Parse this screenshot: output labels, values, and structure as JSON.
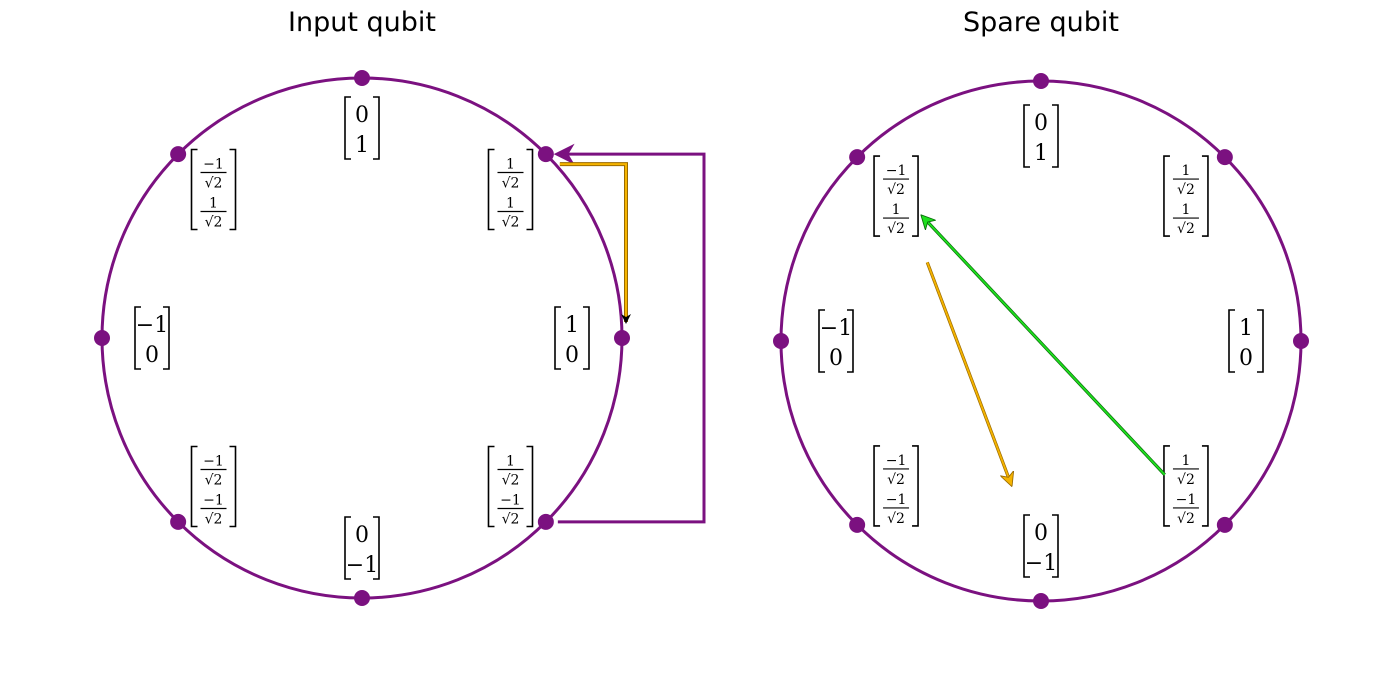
{
  "colors": {
    "circle": "#7b1180",
    "dot": "#7b1180",
    "loop": "#7b1180",
    "orange": "#f5b400",
    "orange_edge": "#9a6a00",
    "green": "#1ee01e",
    "green_edge": "#0a6a0a",
    "black": "#000000"
  },
  "panels": [
    {
      "id": "input",
      "title": "Input qubit",
      "states": [
        {
          "angle": 90,
          "label": [
            [
              "0"
            ],
            [
              "1"
            ]
          ]
        },
        {
          "angle": 45,
          "label": [
            [
              "1",
              "√2"
            ],
            [
              "1",
              "√2"
            ]
          ]
        },
        {
          "angle": 0,
          "label": [
            [
              "1"
            ],
            [
              "0"
            ]
          ]
        },
        {
          "angle": -45,
          "label": [
            [
              "1",
              "√2"
            ],
            [
              "−1",
              "√2"
            ]
          ]
        },
        {
          "angle": -90,
          "label": [
            [
              "0"
            ],
            [
              "−1"
            ]
          ]
        },
        {
          "angle": -135,
          "label": [
            [
              "−1",
              "√2"
            ],
            [
              "−1",
              "√2"
            ]
          ]
        },
        {
          "angle": 180,
          "label": [
            [
              "−1"
            ],
            [
              "0"
            ]
          ]
        },
        {
          "angle": 135,
          "label": [
            [
              "−1",
              "√2"
            ],
            [
              "1",
              "√2"
            ]
          ]
        }
      ]
    },
    {
      "id": "spare",
      "title": "Spare qubit",
      "states": [
        {
          "angle": 90,
          "label": [
            [
              "0"
            ],
            [
              "1"
            ]
          ]
        },
        {
          "angle": 45,
          "label": [
            [
              "1",
              "√2"
            ],
            [
              "1",
              "√2"
            ]
          ]
        },
        {
          "angle": 0,
          "label": [
            [
              "1"
            ],
            [
              "0"
            ]
          ]
        },
        {
          "angle": -45,
          "label": [
            [
              "1",
              "√2"
            ],
            [
              "−1",
              "√2"
            ]
          ]
        },
        {
          "angle": -90,
          "label": [
            [
              "0"
            ],
            [
              "−1"
            ]
          ]
        },
        {
          "angle": -135,
          "label": [
            [
              "−1",
              "√2"
            ],
            [
              "−1",
              "√2"
            ]
          ]
        },
        {
          "angle": 180,
          "label": [
            [
              "−1"
            ],
            [
              "0"
            ]
          ]
        },
        {
          "angle": 135,
          "label": [
            [
              "−1",
              "√2"
            ],
            [
              "1",
              "√2"
            ]
          ]
        }
      ]
    }
  ],
  "arrows": [
    {
      "panel": "input",
      "kind": "loop",
      "from_angle": -45,
      "to_angle": 45,
      "color": "loop"
    },
    {
      "panel": "input",
      "kind": "elbow",
      "from_angle": 45,
      "to_angle": 0,
      "color": "orange",
      "head": "black"
    },
    {
      "panel": "spare",
      "kind": "straight",
      "from_state": -45,
      "to_state": 135,
      "color": "green"
    },
    {
      "panel": "spare",
      "kind": "straight",
      "from_state": 135,
      "to_state": -90,
      "color": "orange"
    }
  ]
}
